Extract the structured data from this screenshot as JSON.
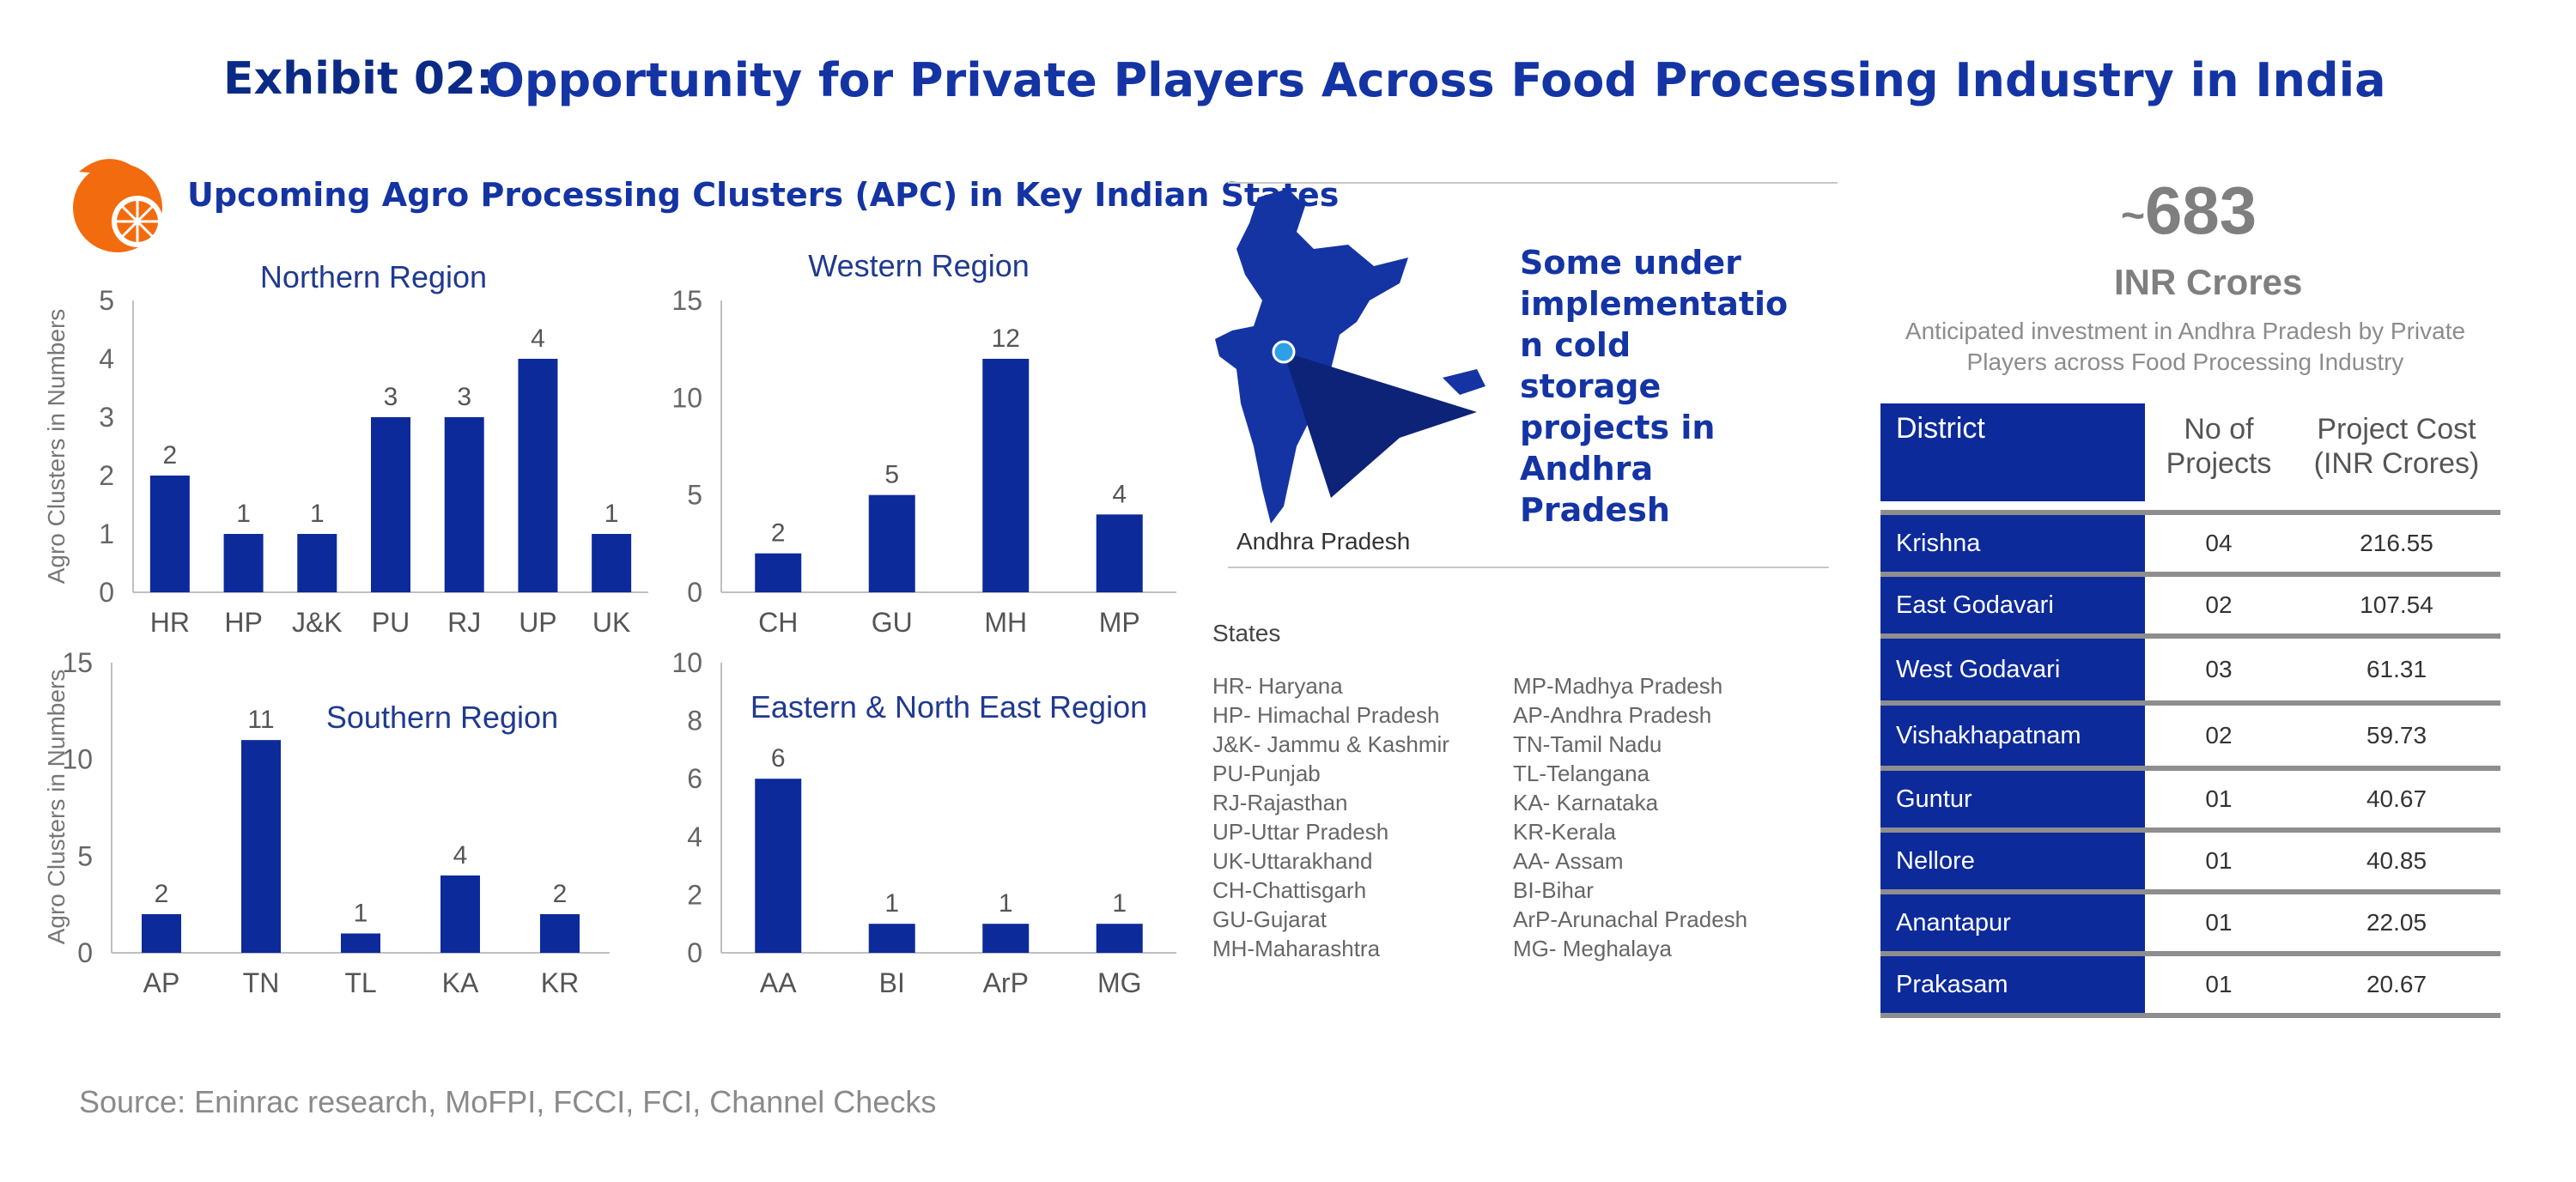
{
  "header": {
    "exhibit": "Exhibit 02:",
    "title": "Opportunity for Private Players Across Food Processing Industry in India"
  },
  "apc_section": {
    "title": "Upcoming Agro Processing Clusters (APC) in Key Indian States",
    "logo_icon": "orange-fruit-icon"
  },
  "colors": {
    "bar": "#0d2a9a",
    "title": "#1434a4",
    "axis": "#666666"
  },
  "chart_data": [
    {
      "type": "bar",
      "title": "Northern Region",
      "ylabel": "Agro Clusters in Numbers",
      "categories": [
        "HR",
        "HP",
        "J&K",
        "PU",
        "RJ",
        "UP",
        "UK"
      ],
      "values": [
        2,
        1,
        1,
        3,
        3,
        4,
        1
      ],
      "ylim": [
        0,
        5
      ],
      "yticks": [
        0,
        1,
        2,
        3,
        4,
        5
      ]
    },
    {
      "type": "bar",
      "title": "Western Region",
      "ylabel": "",
      "categories": [
        "CH",
        "GU",
        "MH",
        "MP"
      ],
      "values": [
        2,
        5,
        12,
        4
      ],
      "ylim": [
        0,
        15
      ],
      "yticks": [
        0,
        5,
        10,
        15
      ]
    },
    {
      "type": "bar",
      "title": "Southern Region",
      "ylabel": "Agro Clusters in Numbers",
      "categories": [
        "AP",
        "TN",
        "TL",
        "KA",
        "KR"
      ],
      "values": [
        2,
        11,
        1,
        4,
        2
      ],
      "ylim": [
        0,
        15
      ],
      "yticks": [
        0,
        5,
        10,
        15
      ]
    },
    {
      "type": "bar",
      "title": "Eastern & North East Region",
      "ylabel": "",
      "categories": [
        "AA",
        "BI",
        "ArP",
        "MG"
      ],
      "values": [
        6,
        1,
        1,
        1
      ],
      "ylim": [
        0,
        10
      ],
      "yticks": [
        0,
        2,
        4,
        6,
        8,
        10
      ]
    }
  ],
  "map": {
    "callout": "Some under\nimplementatio\nn cold storage\nprojects in\nAndhra\nPradesh",
    "label": "Andhra Pradesh",
    "map_icon": "india-map-icon"
  },
  "states": {
    "title": "States",
    "left": [
      "HR- Haryana",
      "HP- Himachal Pradesh",
      "J&K- Jammu & Kashmir",
      "PU-Punjab",
      "RJ-Rajasthan",
      "UP-Uttar Pradesh",
      "UK-Uttarakhand",
      "CH-Chattisgarh",
      "GU-Gujarat",
      "MH-Maharashtra"
    ],
    "right": [
      "MP-Madhya Pradesh",
      "AP-Andhra Pradesh",
      "TN-Tamil Nadu",
      "TL-Telangana",
      "KA- Karnataka",
      "KR-Kerala",
      "AA- Assam",
      "BI-Bihar",
      "ArP-Arunachal Pradesh",
      "MG- Meghalaya"
    ]
  },
  "investment": {
    "tilde": "~",
    "value": "683",
    "unit": "INR Crores",
    "description": "Anticipated investment in Andhra Pradesh by Private Players across Food Processing Industry"
  },
  "table": {
    "headers": [
      "District",
      "No of\nProjects",
      "Project Cost\n(INR Crores)"
    ],
    "rows": [
      [
        "Krishna",
        "04",
        "216.55"
      ],
      [
        "East Godavari",
        "02",
        "107.54"
      ],
      [
        "West Godavari",
        "03",
        "61.31"
      ],
      [
        "Vishakhapatnam",
        "02",
        "59.73"
      ],
      [
        "Guntur",
        "01",
        "40.67"
      ],
      [
        "Nellore",
        "01",
        "40.85"
      ],
      [
        "Anantapur",
        "01",
        "22.05"
      ],
      [
        "Prakasam",
        "01",
        "20.67"
      ]
    ]
  },
  "source": "Source: Eninrac research, MoFPI, FCCI, FCI, Channel Checks"
}
